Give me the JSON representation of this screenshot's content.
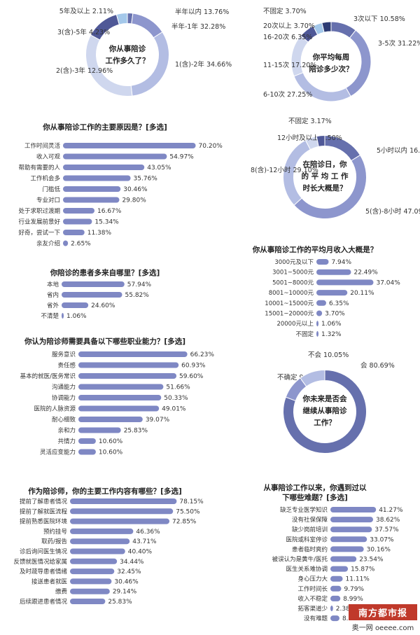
{
  "colors": {
    "bar": "#7f88c4",
    "pie": [
      "#6670ad",
      "#8d96cd",
      "#b3bde3",
      "#cfd7ee",
      "#4f5897",
      "#a4c8ea",
      "#2d3b74"
    ]
  },
  "charts": [
    {
      "id": "years",
      "title_lines": [
        "你从事陪诊",
        "工作多久了？"
      ],
      "chart_data": {
        "type": "pie",
        "slices": [
          {
            "label": "5年及以上",
            "value": 2.11,
            "display": "2.11%"
          },
          {
            "label": "半年以内",
            "value": 13.76,
            "display": "13.76%"
          },
          {
            "label": "半年-1年",
            "value": 32.28,
            "display": "32.28%"
          },
          {
            "label": "1(含)-2年",
            "value": 34.66,
            "display": "34.66%"
          },
          {
            "label": "2(含)-3年",
            "value": 12.96,
            "display": "12.96%"
          },
          {
            "label": "3(含)-5年",
            "value": 4.23,
            "display": "4.23%"
          }
        ]
      }
    },
    {
      "id": "times",
      "title_lines": [
        "你平均每周",
        "陪诊多少次？"
      ],
      "chart_data": {
        "type": "pie",
        "slices": [
          {
            "label": "3次以下",
            "value": 10.58,
            "display": "10.58%"
          },
          {
            "label": "3-5次",
            "value": 31.22,
            "display": "31.22%"
          },
          {
            "label": "6-10次",
            "value": 27.25,
            "display": "27.25%"
          },
          {
            "label": "11-15次",
            "value": 17.2,
            "display": "17.20%"
          },
          {
            "label": "16-20次",
            "value": 6.35,
            "display": "6.35%"
          },
          {
            "label": "20次以上",
            "value": 3.7,
            "display": "3.70%"
          },
          {
            "label": "不固定",
            "value": 3.7,
            "display": "3.70%"
          }
        ]
      }
    },
    {
      "id": "hours",
      "title_lines": [
        "在陪诊日，你",
        "的 平 均 工 作",
        "时长大概是？"
      ],
      "chart_data": {
        "type": "pie",
        "slices": [
          {
            "label": "5小时以内",
            "value": 16.14,
            "display": "16.14%"
          },
          {
            "label": "5(含)-8小时",
            "value": 47.09,
            "display": "47.09%"
          },
          {
            "label": "8(含)-12小时",
            "value": 29.1,
            "display": "29.10%"
          },
          {
            "label": "12小时及以上",
            "value": 4.5,
            "display": "4.50%"
          },
          {
            "label": "不固定",
            "value": 3.17,
            "display": "3.17%"
          }
        ]
      }
    },
    {
      "id": "future",
      "title_lines": [
        "你未来是否会",
        "继续从事陪诊",
        "工作？"
      ],
      "chart_data": {
        "type": "pie",
        "slices": [
          {
            "label": "会",
            "value": 80.69,
            "display": "80.69%"
          },
          {
            "label": "不确定",
            "value": 9.26,
            "display": "9.26%"
          },
          {
            "label": "不会",
            "value": 10.05,
            "display": "10.05%"
          }
        ]
      }
    },
    {
      "id": "reasons",
      "title": "你从事陪诊工作的主要原因是？[多选]",
      "chart_data": {
        "type": "bar",
        "categories": [
          "工作时间灵活",
          "收入可观",
          "帮助有需要的人",
          "工作机会多",
          "门槛低",
          "专业对口",
          "处于求职过渡期",
          "行业发展前景好",
          "好奇，尝试一下",
          "亲友介绍"
        ],
        "values": [
          70.2,
          54.97,
          43.05,
          35.76,
          30.46,
          29.8,
          16.67,
          15.34,
          11.38,
          2.65
        ],
        "display": [
          "70.20%",
          "54.97%",
          "43.05%",
          "35.76%",
          "30.46%",
          "29.80%",
          "16.67%",
          "15.34%",
          "11.38%",
          "2.65%"
        ]
      }
    },
    {
      "id": "income",
      "title": "你从事陪诊工作的平均月收入大概是？",
      "chart_data": {
        "type": "bar",
        "categories": [
          "3000元及以下",
          "3001~5000元",
          "5001~8000元",
          "8001~10000元",
          "10001~15000元",
          "15001~20000元",
          "20000元以上",
          "不固定"
        ],
        "values": [
          7.94,
          22.49,
          37.04,
          20.11,
          6.35,
          3.7,
          1.06,
          1.32
        ],
        "display": [
          "7.94%",
          "22.49%",
          "37.04%",
          "20.11%",
          "6.35%",
          "3.70%",
          "1.06%",
          "1.32%"
        ]
      }
    },
    {
      "id": "patients",
      "title": "你陪诊的患者多来自哪里？[多选]",
      "chart_data": {
        "type": "bar",
        "categories": [
          "本地",
          "省内",
          "省外",
          "不清楚"
        ],
        "values": [
          57.94,
          55.82,
          24.6,
          1.06
        ],
        "display": [
          "57.94%",
          "55.82%",
          "24.60%",
          "1.06%"
        ]
      }
    },
    {
      "id": "abilities",
      "title": "你认为陪诊师需要具备以下哪些职业能力？[多选]",
      "chart_data": {
        "type": "bar",
        "categories": [
          "服务意识",
          "责任感",
          "基本的就医/医务常识",
          "沟通能力",
          "协调能力",
          "医院的人脉资源",
          "耐心细致",
          "亲和力",
          "共情力",
          "灵活应变能力"
        ],
        "values": [
          66.23,
          60.93,
          59.6,
          51.66,
          50.33,
          49.01,
          39.07,
          25.83,
          10.6,
          10.6
        ],
        "display": [
          "66.23%",
          "60.93%",
          "59.60%",
          "51.66%",
          "50.33%",
          "49.01%",
          "39.07%",
          "25.83%",
          "10.60%",
          "10.60%"
        ]
      }
    },
    {
      "id": "content",
      "title": "作为陪诊师，你的主要工作内容有哪些？[多选]",
      "chart_data": {
        "type": "bar",
        "categories": [
          "提前了解患者情况",
          "提前了解就医流程",
          "提前熟悉医院环境",
          "预约挂号",
          "取药/报告",
          "诊后询问医生情况",
          "反馈就医情况给家属",
          "及时疏导患者情绪",
          "接送患者就医",
          "缴费",
          "后续跟进患者情况"
        ],
        "values": [
          78.15,
          75.5,
          72.85,
          46.36,
          43.71,
          40.4,
          34.44,
          32.45,
          30.46,
          29.14,
          25.83
        ],
        "display": [
          "78.15%",
          "75.50%",
          "72.85%",
          "46.36%",
          "43.71%",
          "40.40%",
          "34.44%",
          "32.45%",
          "30.46%",
          "29.14%",
          "25.83%"
        ]
      }
    },
    {
      "id": "difficulties",
      "title_lines": [
        "从事陪诊工作以来，你遇到过以",
        "下哪些难题？[多选]"
      ],
      "chart_data": {
        "type": "bar",
        "categories": [
          "缺乏专业医学知识",
          "没有社保保障",
          "缺少岗前培训",
          "医院或科室停诊",
          "患者临时爽约",
          "被误认为是黄牛/医托",
          "医生关系难协调",
          "身心压力大",
          "工作时间长",
          "收入不稳定",
          "拓客渠道少",
          "没有难题"
        ],
        "values": [
          41.27,
          38.62,
          37.57,
          33.07,
          30.16,
          23.54,
          15.87,
          11.11,
          9.79,
          8.99,
          2.38,
          8.2
        ],
        "display": [
          "41.27%",
          "38.62%",
          "37.57%",
          "33.07%",
          "30.16%",
          "23.54%",
          "15.87%",
          "11.11%",
          "9.79%",
          "8.99%",
          "2.38%",
          "8.20%"
        ]
      }
    }
  ],
  "footer": {
    "logo": "南方都市报",
    "sub": "奥一网 oeeee.com"
  }
}
